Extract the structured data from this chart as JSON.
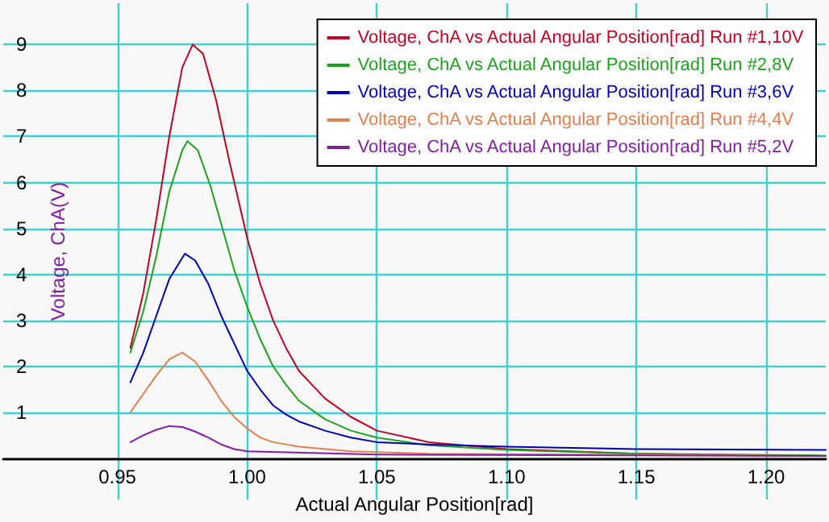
{
  "chart_data": {
    "type": "line",
    "xlabel": "Actual Angular Position[rad]",
    "ylabel": "Voltage, ChA(V)",
    "xlim": [
      0.906,
      1.223
    ],
    "ylim": [
      -0.9,
      9.9
    ],
    "xticks": [
      {
        "value": 0.95,
        "label": "0.95"
      },
      {
        "value": 1.0,
        "label": "1.00"
      },
      {
        "value": 1.05,
        "label": "1.05"
      },
      {
        "value": 1.1,
        "label": "1.10"
      },
      {
        "value": 1.15,
        "label": "1.15"
      },
      {
        "value": 1.2,
        "label": "1.20"
      }
    ],
    "yticks": [
      1,
      2,
      3,
      4,
      5,
      6,
      7,
      8,
      9
    ],
    "grid": true,
    "legend": "top right",
    "marker": "none",
    "line_style": "solid",
    "series": [
      {
        "name": "Voltage, ChA vs Actual Angular Position[rad] Run #1,10V",
        "color": "#c00020",
        "x": [
          0.955,
          0.96,
          0.965,
          0.97,
          0.975,
          0.979,
          0.983,
          0.988,
          0.993,
          1.0,
          1.005,
          1.01,
          1.015,
          1.02,
          1.03,
          1.04,
          1.05,
          1.07,
          1.1,
          1.15,
          1.2,
          1.223
        ],
        "values": [
          2.4,
          3.6,
          5.2,
          7.0,
          8.5,
          9.0,
          8.8,
          7.8,
          6.5,
          4.8,
          3.8,
          3.0,
          2.4,
          1.9,
          1.3,
          0.9,
          0.6,
          0.35,
          0.2,
          0.1,
          0.06,
          0.05
        ]
      },
      {
        "name": "Voltage, ChA vs Actual Angular Position[rad] Run #2,8V",
        "color": "#20a020",
        "x": [
          0.955,
          0.96,
          0.965,
          0.97,
          0.975,
          0.977,
          0.981,
          0.986,
          0.991,
          0.995,
          1.0,
          1.005,
          1.01,
          1.015,
          1.02,
          1.03,
          1.04,
          1.05,
          1.07,
          1.1,
          1.15,
          1.223
        ],
        "values": [
          2.3,
          3.2,
          4.4,
          5.8,
          6.7,
          6.9,
          6.7,
          5.9,
          4.9,
          4.1,
          3.3,
          2.6,
          2.0,
          1.6,
          1.25,
          0.85,
          0.6,
          0.45,
          0.28,
          0.18,
          0.1,
          0.06
        ]
      },
      {
        "name": "Voltage, ChA vs Actual Angular Position[rad] Run #3,6V",
        "color": "#0000b0",
        "x": [
          0.955,
          0.96,
          0.965,
          0.97,
          0.976,
          0.98,
          0.985,
          0.99,
          0.995,
          1.0,
          1.005,
          1.01,
          1.015,
          1.02,
          1.03,
          1.04,
          1.05,
          1.07,
          1.1,
          1.15,
          1.223
        ],
        "values": [
          1.65,
          2.3,
          3.1,
          3.9,
          4.45,
          4.3,
          3.8,
          3.1,
          2.5,
          1.9,
          1.5,
          1.15,
          0.95,
          0.8,
          0.6,
          0.45,
          0.35,
          0.3,
          0.25,
          0.2,
          0.18
        ]
      },
      {
        "name": "Voltage, ChA vs Actual Angular Position[rad] Run #4,4V",
        "color": "#e08050",
        "x": [
          0.955,
          0.96,
          0.965,
          0.97,
          0.975,
          0.98,
          0.985,
          0.99,
          0.995,
          1.0,
          1.005,
          1.01,
          1.02,
          1.04,
          1.07,
          1.223
        ],
        "values": [
          1.0,
          1.4,
          1.8,
          2.15,
          2.3,
          2.1,
          1.7,
          1.25,
          0.9,
          0.65,
          0.45,
          0.35,
          0.25,
          0.15,
          0.1,
          0.05
        ]
      },
      {
        "name": "Voltage, ChA vs Actual Angular Position[rad] Run #5,2V",
        "color": "#8020a0",
        "x": [
          0.955,
          0.96,
          0.965,
          0.97,
          0.975,
          0.98,
          0.985,
          0.99,
          0.995,
          1.0,
          1.05,
          1.223
        ],
        "values": [
          0.35,
          0.5,
          0.62,
          0.7,
          0.68,
          0.58,
          0.45,
          0.3,
          0.2,
          0.15,
          0.08,
          0.05
        ]
      }
    ]
  }
}
